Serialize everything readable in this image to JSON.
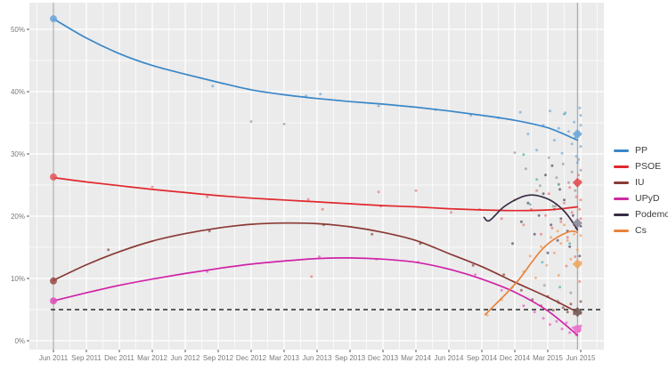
{
  "chart_data": {
    "type": "line",
    "title": "",
    "xlabel": "",
    "ylabel": "",
    "x_unit": "months_since_jun_2011",
    "x_ticks": [
      "Jun 2011",
      "Sep 2011",
      "Dec 2011",
      "Mar 2012",
      "Jun 2012",
      "Sep 2012",
      "Dec 2012",
      "Mar 2013",
      "Jun 2013",
      "Sep 2013",
      "Dec 2013",
      "Mar 2014",
      "Jun 2014",
      "Sep 2014",
      "Dec 2014",
      "Mar 2015",
      "Jun 2015"
    ],
    "x_tick_months": [
      0,
      3,
      6,
      9,
      12,
      15,
      18,
      21,
      24,
      27,
      30,
      33,
      36,
      39,
      42,
      45,
      48
    ],
    "y_ticks": [
      "0%",
      "10%",
      "20%",
      "30%",
      "40%",
      "50%"
    ],
    "y_tick_values": [
      0,
      10,
      20,
      30,
      40,
      50
    ],
    "ylim": [
      0,
      54.3
    ],
    "grid": "on",
    "panel_bg": "#ebebeb",
    "grid_color": "#ffffff",
    "legend_position": "right",
    "threshold_line": {
      "value": 5,
      "style": "dashed",
      "color": "#2b2b2b"
    },
    "event_lines": [
      {
        "t": 0,
        "color": "#9e9e9e"
      },
      {
        "t": 47.7,
        "color": "#9e9e9e"
      }
    ],
    "series": [
      {
        "name": "PP",
        "color": "#3a87c8",
        "points": [
          [
            0,
            51.7
          ],
          [
            3,
            48.6
          ],
          [
            6,
            46.1
          ],
          [
            9,
            44.2
          ],
          [
            12,
            42.8
          ],
          [
            15,
            41.5
          ],
          [
            18,
            40.3
          ],
          [
            21,
            39.5
          ],
          [
            24,
            38.9
          ],
          [
            27,
            38.4
          ],
          [
            30,
            38.0
          ],
          [
            33,
            37.5
          ],
          [
            36,
            36.9
          ],
          [
            39,
            36.2
          ],
          [
            42,
            35.4
          ],
          [
            45,
            34.2
          ],
          [
            47.7,
            32.2
          ]
        ]
      },
      {
        "name": "PSOE",
        "color": "#e0282e",
        "points": [
          [
            0,
            26.2
          ],
          [
            3,
            25.5
          ],
          [
            6,
            24.9
          ],
          [
            9,
            24.3
          ],
          [
            12,
            23.8
          ],
          [
            15,
            23.3
          ],
          [
            18,
            22.9
          ],
          [
            21,
            22.6
          ],
          [
            24,
            22.3
          ],
          [
            27,
            22.0
          ],
          [
            30,
            21.7
          ],
          [
            33,
            21.5
          ],
          [
            36,
            21.2
          ],
          [
            39,
            21.0
          ],
          [
            42,
            20.9
          ],
          [
            45,
            21.0
          ],
          [
            47.7,
            21.5
          ]
        ]
      },
      {
        "name": "IU",
        "color": "#8a3a36",
        "points": [
          [
            0,
            9.7
          ],
          [
            3,
            12.2
          ],
          [
            6,
            14.3
          ],
          [
            9,
            16.0
          ],
          [
            12,
            17.2
          ],
          [
            15,
            18.1
          ],
          [
            18,
            18.7
          ],
          [
            21,
            18.9
          ],
          [
            24,
            18.8
          ],
          [
            27,
            18.3
          ],
          [
            30,
            17.4
          ],
          [
            33,
            16.1
          ],
          [
            36,
            14.0
          ],
          [
            39,
            11.9
          ],
          [
            42,
            9.4
          ],
          [
            45,
            7.0
          ],
          [
            47.7,
            4.6
          ]
        ]
      },
      {
        "name": "UPyD",
        "color": "#d023a8",
        "points": [
          [
            0,
            6.4
          ],
          [
            3,
            7.7
          ],
          [
            6,
            8.9
          ],
          [
            9,
            9.9
          ],
          [
            12,
            10.8
          ],
          [
            15,
            11.6
          ],
          [
            18,
            12.3
          ],
          [
            21,
            12.8
          ],
          [
            24,
            13.2
          ],
          [
            27,
            13.3
          ],
          [
            30,
            13.1
          ],
          [
            33,
            12.6
          ],
          [
            36,
            11.5
          ],
          [
            39,
            9.9
          ],
          [
            42,
            7.8
          ],
          [
            45,
            4.8
          ],
          [
            47.7,
            0.9
          ]
        ]
      },
      {
        "name": "Podemos",
        "color": "#372b45",
        "points": [
          [
            39.2,
            19.8
          ],
          [
            39.7,
            19.3
          ],
          [
            41,
            21.5
          ],
          [
            42.5,
            23.0
          ],
          [
            43.5,
            23.4
          ],
          [
            44.5,
            23.1
          ],
          [
            45.5,
            22.3
          ],
          [
            46.5,
            20.8
          ],
          [
            47.2,
            19.2
          ],
          [
            47.7,
            17.8
          ]
        ]
      },
      {
        "name": "Cs",
        "color": "#e8833c",
        "points": [
          [
            39.3,
            4.2
          ],
          [
            40.5,
            6.3
          ],
          [
            41.5,
            8.1
          ],
          [
            42.5,
            10.1
          ],
          [
            43.5,
            12.5
          ],
          [
            44.5,
            14.7
          ],
          [
            45.5,
            16.2
          ],
          [
            46.5,
            17.2
          ],
          [
            47.2,
            17.6
          ],
          [
            47.7,
            17.4
          ]
        ]
      }
    ],
    "scatter": [
      {
        "name": "PP-polls",
        "color": "#74a9d8",
        "points": [
          [
            14.5,
            40.9
          ],
          [
            23,
            39.3
          ],
          [
            24.3,
            39.6
          ],
          [
            29.6,
            37.7
          ],
          [
            34.8,
            37.1
          ],
          [
            38,
            36.2
          ],
          [
            40.5,
            35.8
          ],
          [
            42.5,
            36.7
          ],
          [
            43.2,
            33.2
          ],
          [
            44,
            30.6
          ],
          [
            44.6,
            34.6
          ],
          [
            45.2,
            36.9
          ],
          [
            45.6,
            32.2
          ],
          [
            46,
            34.1
          ],
          [
            46.3,
            30.1
          ],
          [
            46.6,
            36.6
          ],
          [
            46.9,
            33.6
          ],
          [
            47.2,
            31.6
          ],
          [
            47.4,
            35.1
          ],
          [
            47.6,
            29.6
          ],
          [
            47.8,
            33.1
          ],
          [
            47.9,
            37.4
          ],
          [
            48,
            31.2
          ],
          [
            48,
            34.6
          ],
          [
            48,
            36.2
          ],
          [
            47.7,
            28.6
          ]
        ]
      },
      {
        "name": "PSOE-polls",
        "color": "#e87878",
        "points": [
          [
            9,
            24.7
          ],
          [
            14,
            23.1
          ],
          [
            23.2,
            22.7
          ],
          [
            24.5,
            21.1
          ],
          [
            29.6,
            23.9
          ],
          [
            29.8,
            21.6
          ],
          [
            33,
            24.1
          ],
          [
            36.2,
            20.6
          ],
          [
            38.8,
            21.1
          ],
          [
            40.8,
            19.6
          ],
          [
            42,
            22.6
          ],
          [
            42.8,
            18.6
          ],
          [
            43.5,
            21.1
          ],
          [
            44,
            24.1
          ],
          [
            44.4,
            17.1
          ],
          [
            44.8,
            20.1
          ],
          [
            45.1,
            23.6
          ],
          [
            45.4,
            18.1
          ],
          [
            45.7,
            21.6
          ],
          [
            46,
            25.1
          ],
          [
            46.2,
            19.1
          ],
          [
            46.5,
            22.1
          ],
          [
            46.8,
            16.6
          ],
          [
            47,
            24.6
          ],
          [
            47.2,
            20.6
          ],
          [
            47.4,
            18.6
          ],
          [
            47.6,
            23.1
          ],
          [
            47.8,
            26.6
          ],
          [
            47.9,
            21.1
          ],
          [
            48,
            25.6
          ],
          [
            48,
            19.6
          ],
          [
            48,
            22.6
          ],
          [
            23.5,
            10.3
          ],
          [
            47.5,
            13.5
          ],
          [
            46.7,
            12.0
          ],
          [
            47.9,
            9.5
          ]
        ]
      },
      {
        "name": "IU-polls",
        "color": "#8a4a42",
        "points": [
          [
            5,
            14.6
          ],
          [
            14.2,
            17.6
          ],
          [
            24.6,
            18.6
          ],
          [
            29,
            17.1
          ],
          [
            33.4,
            15.6
          ],
          [
            38.2,
            12.1
          ],
          [
            41,
            10.6
          ],
          [
            42.6,
            8.1
          ],
          [
            43.6,
            6.6
          ],
          [
            44.4,
            5.6
          ],
          [
            45,
            7.1
          ],
          [
            45.5,
            4.9
          ],
          [
            46,
            6.1
          ],
          [
            46.4,
            5.3
          ],
          [
            46.8,
            4.6
          ],
          [
            47.1,
            5.9
          ],
          [
            47.4,
            4.3
          ],
          [
            47.7,
            5.1
          ],
          [
            48,
            4.4
          ],
          [
            48,
            6.3
          ]
        ]
      },
      {
        "name": "UPyD-polls",
        "color": "#e35fc2",
        "points": [
          [
            14,
            11.1
          ],
          [
            24.2,
            13.5
          ],
          [
            29.4,
            13.1
          ],
          [
            33.2,
            12.6
          ],
          [
            38.4,
            10.6
          ],
          [
            40.8,
            8.1
          ],
          [
            42.8,
            5.6
          ],
          [
            43.8,
            4.6
          ],
          [
            44.6,
            3.6
          ],
          [
            45.2,
            2.6
          ],
          [
            45.8,
            3.1
          ],
          [
            46.3,
            1.9
          ],
          [
            46.7,
            2.9
          ],
          [
            47,
            1.3
          ],
          [
            47.3,
            2.1
          ],
          [
            47.6,
            0.9
          ],
          [
            47.9,
            1.6
          ],
          [
            48,
            2.4
          ]
        ]
      },
      {
        "name": "Podemos-polls",
        "color": "#55485e",
        "points": [
          [
            41.8,
            15.6
          ],
          [
            42.6,
            19.1
          ],
          [
            43.2,
            22.1
          ],
          [
            43.8,
            17.1
          ],
          [
            44.2,
            20.1
          ],
          [
            44.6,
            23.6
          ],
          [
            45,
            14.1
          ],
          [
            45.3,
            18.6
          ],
          [
            45.6,
            21.1
          ],
          [
            45.9,
            16.1
          ],
          [
            46.2,
            19.6
          ],
          [
            46.5,
            22.6
          ],
          [
            46.8,
            17.6
          ],
          [
            47,
            15.1
          ],
          [
            47.3,
            20.1
          ],
          [
            47.6,
            18.1
          ],
          [
            47.9,
            13.6
          ],
          [
            48,
            18.4
          ],
          [
            44.8,
            26.6
          ],
          [
            45.4,
            28.1
          ],
          [
            46.1,
            24.3
          ]
        ]
      },
      {
        "name": "Cs-polls",
        "color": "#efa05f",
        "points": [
          [
            39.5,
            4.1
          ],
          [
            40.8,
            6.6
          ],
          [
            41.8,
            8.6
          ],
          [
            42.8,
            11.1
          ],
          [
            43.4,
            13.6
          ],
          [
            43.9,
            10.1
          ],
          [
            44.4,
            15.1
          ],
          [
            44.9,
            12.1
          ],
          [
            45.3,
            16.6
          ],
          [
            45.6,
            14.1
          ],
          [
            45.9,
            17.6
          ],
          [
            46.2,
            15.6
          ],
          [
            46.5,
            18.6
          ],
          [
            46.8,
            16.1
          ],
          [
            47.1,
            13.1
          ],
          [
            47.4,
            17.1
          ],
          [
            47.7,
            14.6
          ],
          [
            48,
            16.9
          ],
          [
            48,
            12.6
          ],
          [
            46,
            10.5
          ]
        ]
      },
      {
        "name": "other-polls-teal",
        "color": "#49b6a8",
        "points": [
          [
            42.8,
            29.9
          ],
          [
            44,
            25.9
          ],
          [
            45.5,
            21.6
          ],
          [
            46,
            25.1
          ],
          [
            46.5,
            36.4
          ],
          [
            47,
            15.6
          ],
          [
            47.5,
            32.6
          ],
          [
            44.5,
            12.6
          ],
          [
            46.1,
            8.6
          ],
          [
            43.4,
            21.9
          ]
        ]
      },
      {
        "name": "other-polls-gray",
        "color": "#9a9a9a",
        "points": [
          [
            18,
            35.2
          ],
          [
            21,
            34.8
          ],
          [
            42,
            30.2
          ],
          [
            43,
            27.6
          ],
          [
            44.3,
            24.9
          ],
          [
            45.1,
            29.4
          ],
          [
            45.8,
            26.2
          ],
          [
            46.4,
            28.4
          ],
          [
            46.9,
            25.4
          ],
          [
            47.2,
            27.1
          ],
          [
            47.5,
            24.1
          ],
          [
            47.8,
            29.1
          ],
          [
            48,
            27.4
          ],
          [
            44.7,
            8.9
          ],
          [
            45.9,
            6.4
          ],
          [
            47.1,
            7.7
          ]
        ]
      }
    ],
    "start_markers": [
      {
        "party": "PP",
        "t": 0,
        "value": 51.7,
        "color": "#6aa5d8"
      },
      {
        "party": "PSOE",
        "t": 0,
        "value": 26.3,
        "color": "#e4555c"
      },
      {
        "party": "IU",
        "t": 0,
        "value": 9.6,
        "color": "#9a4a44"
      },
      {
        "party": "UPyD",
        "t": 0,
        "value": 6.4,
        "color": "#df4fb8"
      }
    ],
    "end_markers": [
      {
        "party": "PP",
        "t": 47.7,
        "value": 33.2,
        "color": "#6aa5d8",
        "shape": "diamond"
      },
      {
        "party": "PSOE",
        "t": 47.7,
        "value": 25.4,
        "color": "#e24850",
        "shape": "diamond"
      },
      {
        "party": "Podemos",
        "t": 47.7,
        "value": 18.9,
        "color": "#8d8798",
        "shape": "diamond"
      },
      {
        "party": "Cs",
        "t": 47.7,
        "value": 12.3,
        "color": "#eda55e",
        "shape": "diamond"
      },
      {
        "party": "IU",
        "t": 47.7,
        "value": 4.6,
        "color": "#6e5a52",
        "shape": "diamond"
      },
      {
        "party": "UPyD",
        "t": 47.7,
        "value": 1.9,
        "color": "#ea64c8",
        "shape": "circle"
      }
    ]
  },
  "legend": {
    "items": [
      {
        "label": "PP",
        "color": "#3a87c8"
      },
      {
        "label": "PSOE",
        "color": "#e0282e"
      },
      {
        "label": "IU",
        "color": "#8a3a36"
      },
      {
        "label": "UPyD",
        "color": "#cc2aa2"
      },
      {
        "label": "Podemos",
        "color": "#372b45"
      },
      {
        "label": "Cs",
        "color": "#e8833c"
      }
    ]
  }
}
